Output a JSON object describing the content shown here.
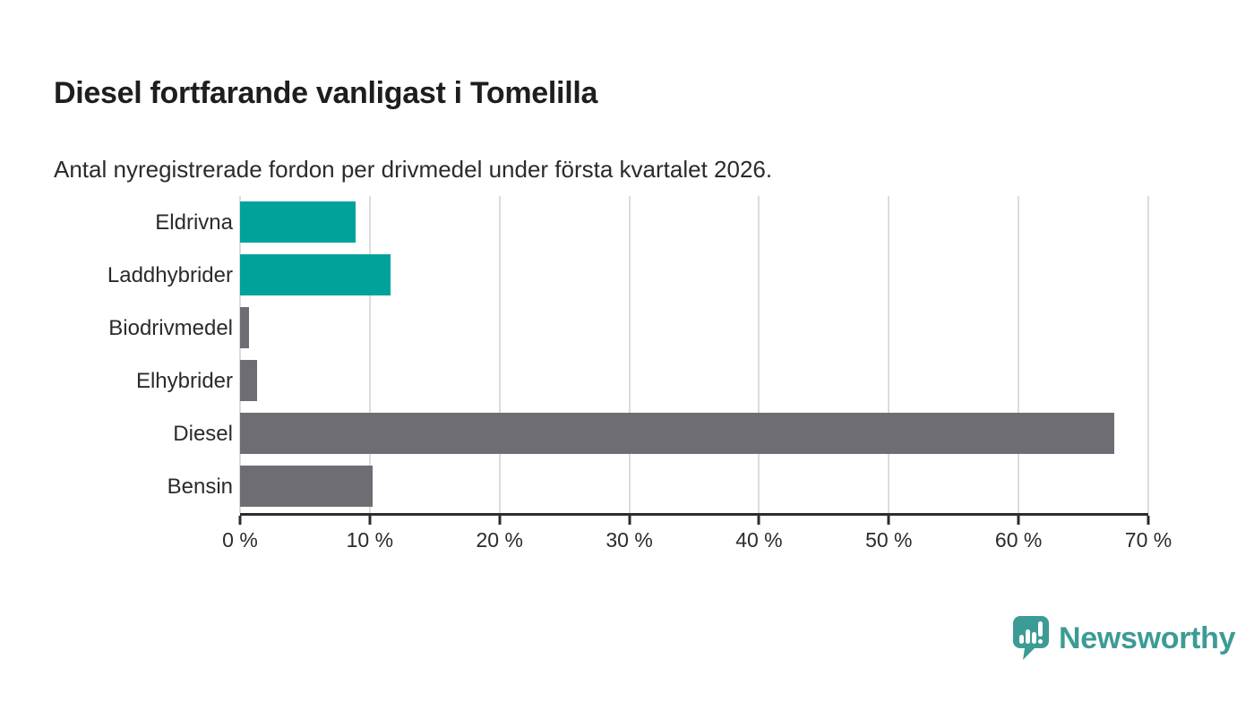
{
  "header": {
    "title": "Diesel fortfarande vanligast i Tomelilla",
    "subtitle": "Antal nyregistrerade fordon per drivmedel under första kvartalet 2026."
  },
  "chart_data": {
    "type": "bar",
    "orientation": "horizontal",
    "title": "Diesel fortfarande vanligast i Tomelilla",
    "subtitle": "Antal nyregistrerade fordon per drivmedel under första kvartalet 2026.",
    "categories": [
      "Eldrivna",
      "Laddhybrider",
      "Biodrivmedel",
      "Elhybrider",
      "Diesel",
      "Bensin"
    ],
    "values": [
      8.9,
      11.6,
      0.7,
      1.3,
      67.4,
      10.2
    ],
    "unit": "%",
    "bar_colors": [
      "#00a29a",
      "#00a29a",
      "#6e6d73",
      "#6e6d73",
      "#6e6d73",
      "#6e6d73"
    ],
    "xlabel": "",
    "ylabel": "",
    "xlim": [
      0,
      70
    ],
    "x_ticks": [
      {
        "value": 0,
        "label": "0 %"
      },
      {
        "value": 10,
        "label": "10 %"
      },
      {
        "value": 20,
        "label": "20 %"
      },
      {
        "value": 30,
        "label": "30 %"
      },
      {
        "value": 40,
        "label": "40 %"
      },
      {
        "value": 50,
        "label": "50 %"
      },
      {
        "value": 60,
        "label": "60 %"
      },
      {
        "value": 70,
        "label": "70 %"
      }
    ],
    "grid": true,
    "gridline_color": "#dcdcdc",
    "axis_color": "#2d2d2d",
    "legend": "none"
  },
  "branding": {
    "logo_text": "Newsworthy",
    "logo_color": "#3d9b95",
    "logo_icon": "newsworthy-pin-barchart-icon"
  }
}
